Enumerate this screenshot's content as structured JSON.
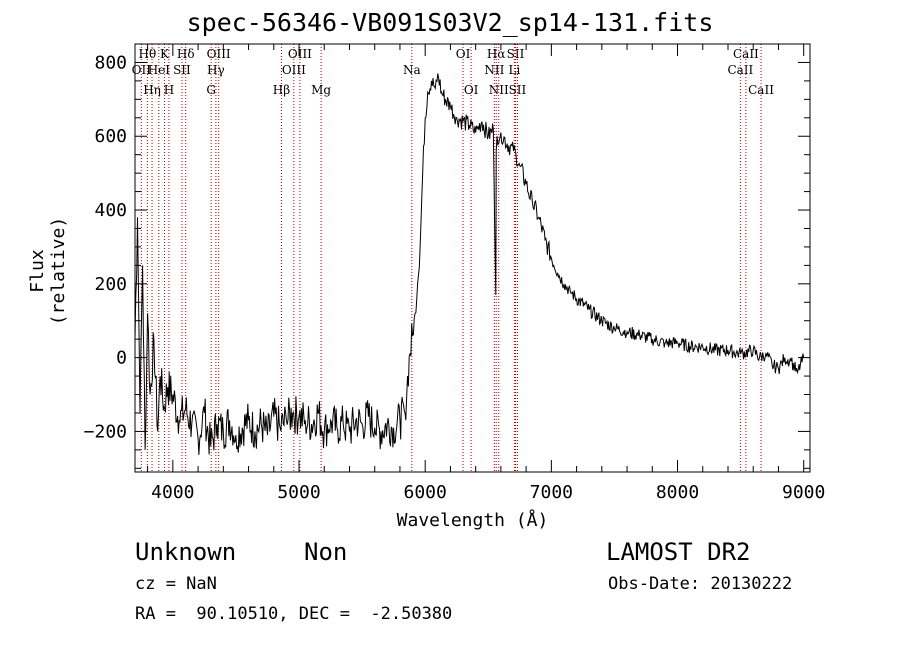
{
  "title": "spec-56346-VB091S03V2_sp14-131.fits",
  "xlabel": "Wavelength (Å)",
  "ylabel": "Flux (relative)",
  "info": {
    "class": "Unknown",
    "subclass": "Non",
    "survey": "LAMOST DR2",
    "cz": "cz = NaN",
    "obs_date": "Obs-Date: 20130222",
    "radec": "RA =  90.10510, DEC =  -2.50380"
  },
  "chart_data": {
    "type": "line",
    "title": "spec-56346-VB091S03V2_sp14-131.fits",
    "xlabel": "Wavelength (Å)",
    "ylabel": "Flux (relative)",
    "xlim": [
      3700,
      9050
    ],
    "ylim": [
      -310,
      850
    ],
    "xticks": [
      4000,
      5000,
      6000,
      7000,
      8000,
      9000
    ],
    "yticks": [
      -200,
      0,
      200,
      400,
      600,
      800
    ],
    "grid": false,
    "series": [
      {
        "x": [
          3700,
          3720,
          3740,
          3760,
          3780,
          3800,
          3820,
          3850,
          3880,
          3900,
          3930,
          3960,
          4000,
          4050,
          4100,
          4150,
          4200,
          4250,
          4300,
          4350,
          4400,
          4450,
          4500,
          4550,
          4600,
          4650,
          4700,
          4750,
          4800,
          4850,
          4900,
          4950,
          5000,
          5050,
          5100,
          5150,
          5200,
          5250,
          5300,
          5350,
          5400,
          5450,
          5500,
          5550,
          5600,
          5650,
          5700,
          5750,
          5800,
          5840,
          5860,
          5880,
          5900,
          5920,
          5940,
          5960,
          5980,
          6000,
          6020,
          6050,
          6080,
          6100,
          6130,
          6160,
          6200,
          6250,
          6300,
          6350,
          6400,
          6450,
          6500,
          6540,
          6560,
          6563,
          6570,
          6600,
          6650,
          6700,
          6720,
          6750,
          6800,
          6850,
          6900,
          6950,
          7000,
          7050,
          7100,
          7150,
          7200,
          7300,
          7400,
          7500,
          7600,
          7700,
          7800,
          7900,
          8000,
          8100,
          8200,
          8300,
          8400,
          8500,
          8600,
          8650,
          8700,
          8750,
          8800,
          8850,
          8900,
          8950,
          9000
        ],
        "y": [
          50,
          380,
          -150,
          250,
          -250,
          120,
          -100,
          50,
          -200,
          -50,
          -130,
          -80,
          -100,
          -170,
          -140,
          -180,
          -220,
          -150,
          -240,
          -180,
          -200,
          -170,
          -210,
          -190,
          -170,
          -200,
          -180,
          -210,
          -160,
          -190,
          -170,
          -150,
          -160,
          -170,
          -180,
          -150,
          -200,
          -170,
          -190,
          -180,
          -200,
          -170,
          -180,
          -160,
          -190,
          -200,
          -180,
          -190,
          -170,
          -150,
          -50,
          10,
          60,
          120,
          200,
          300,
          500,
          650,
          720,
          750,
          730,
          770,
          720,
          700,
          680,
          650,
          640,
          630,
          610,
          640,
          600,
          620,
          170,
          560,
          600,
          610,
          580,
          560,
          550,
          520,
          470,
          420,
          380,
          320,
          270,
          230,
          200,
          180,
          160,
          130,
          100,
          80,
          70,
          60,
          50,
          40,
          40,
          30,
          30,
          20,
          20,
          10,
          20,
          0,
          10,
          -20,
          -30,
          0,
          -10,
          -40,
          0
        ]
      }
    ],
    "line_markers": [
      {
        "wl": 3750,
        "label": "OII",
        "row": 1
      },
      {
        "wl": 3798,
        "label": "H$\\theta$",
        "row": 0
      },
      {
        "wl": 3835,
        "label": "H$\\eta$",
        "row": 2
      },
      {
        "wl": 3889,
        "label": "HeI",
        "row": 1
      },
      {
        "wl": 3934,
        "label": "K",
        "row": 0
      },
      {
        "wl": 3969,
        "label": "H",
        "row": 2
      },
      {
        "wl": 4072,
        "label": "SII",
        "row": 1
      },
      {
        "wl": 4102,
        "label": "H$\\delta$",
        "row": 0
      },
      {
        "wl": 4304,
        "label": "G",
        "row": 2
      },
      {
        "wl": 4341,
        "label": "H$\\gamma$",
        "row": 1
      },
      {
        "wl": 4363,
        "label": "OIII",
        "row": 0
      },
      {
        "wl": 4861,
        "label": "H$\\beta$",
        "row": 2
      },
      {
        "wl": 4959,
        "label": "OIII",
        "row": 1
      },
      {
        "wl": 5007,
        "label": "OIII",
        "row": 0
      },
      {
        "wl": 5175,
        "label": "Mg",
        "row": 2
      },
      {
        "wl": 5894,
        "label": "Na",
        "row": 1
      },
      {
        "wl": 6300,
        "label": "OI",
        "row": 0
      },
      {
        "wl": 6364,
        "label": "OI",
        "row": 2
      },
      {
        "wl": 6548,
        "label": "NII",
        "row": 1
      },
      {
        "wl": 6563,
        "label": "H$\\alpha$",
        "row": 0
      },
      {
        "wl": 6583,
        "label": "NII",
        "row": 2
      },
      {
        "wl": 6707,
        "label": "Li",
        "row": 1
      },
      {
        "wl": 6716,
        "label": "SII",
        "row": 0
      },
      {
        "wl": 6731,
        "label": "SII",
        "row": 2
      },
      {
        "wl": 8498,
        "label": "CaII",
        "row": 1
      },
      {
        "wl": 8542,
        "label": "CaII",
        "row": 0
      },
      {
        "wl": 8662,
        "label": "CaII",
        "row": 2
      }
    ],
    "colors": {
      "spectrum": "#000000",
      "markers": "#b00000",
      "labels": "#000000"
    }
  }
}
